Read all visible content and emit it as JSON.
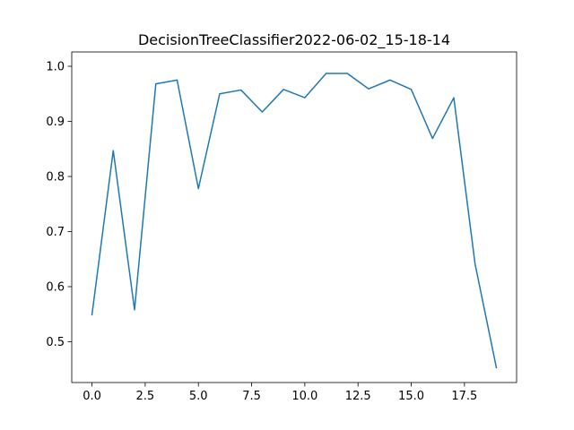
{
  "chart_data": {
    "type": "line",
    "title": "DecisionTreeClassifier2022-06-02_15-18-14",
    "xlabel": "",
    "ylabel": "",
    "xlim": [
      -0.95,
      19.95
    ],
    "ylim": [
      0.426,
      1.026
    ],
    "xticks": [
      0.0,
      2.5,
      5.0,
      7.5,
      10.0,
      12.5,
      15.0,
      17.5
    ],
    "xtick_labels": [
      "0.0",
      "2.5",
      "5.0",
      "7.5",
      "10.0",
      "12.5",
      "15.0",
      "17.5"
    ],
    "yticks": [
      0.5,
      0.6,
      0.7,
      0.8,
      0.9,
      1.0
    ],
    "ytick_labels": [
      "0.5",
      "0.6",
      "0.7",
      "0.8",
      "0.9",
      "1.0"
    ],
    "grid": false,
    "series": [
      {
        "color": "#1f77b4",
        "x": [
          0,
          1,
          2,
          3,
          4,
          5,
          6,
          7,
          8,
          9,
          10,
          11,
          12,
          13,
          14,
          15,
          16,
          17,
          18,
          19
        ],
        "y": [
          0.549,
          0.847,
          0.558,
          0.968,
          0.975,
          0.778,
          0.95,
          0.957,
          0.917,
          0.958,
          0.943,
          0.987,
          0.987,
          0.959,
          0.975,
          0.958,
          0.869,
          0.943,
          0.641,
          0.453
        ]
      }
    ]
  }
}
